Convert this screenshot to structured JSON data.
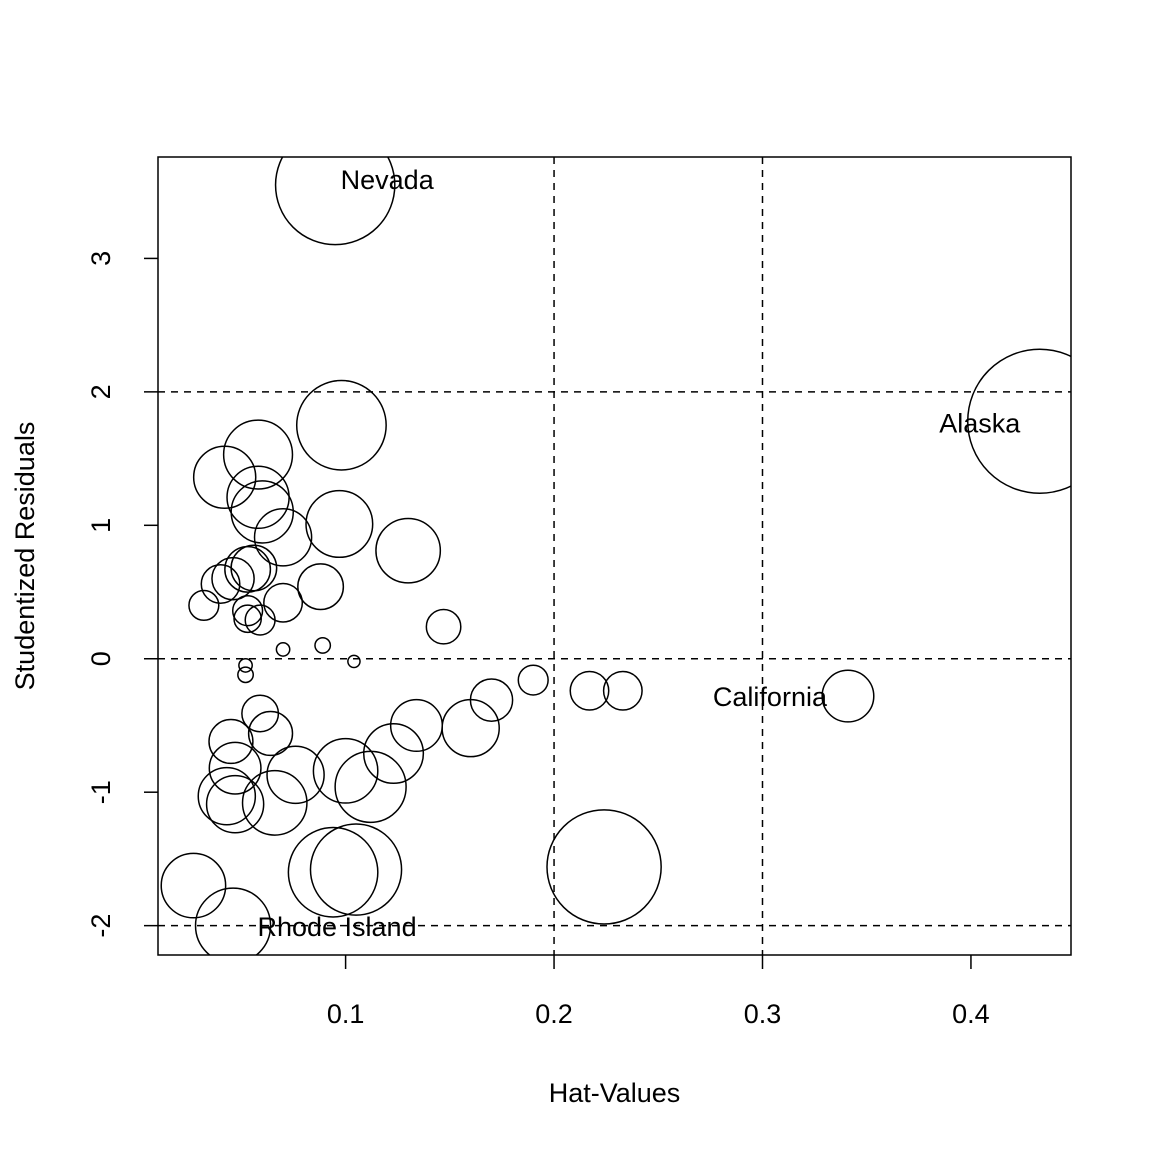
{
  "chart_data": {
    "type": "scatter",
    "xlabel": "Hat-Values",
    "ylabel": "Studentized Residuals",
    "xlim": [
      0.01,
      0.448
    ],
    "ylim": [
      -2.22,
      3.76
    ],
    "x_ticks": [
      "0.1",
      "0.2",
      "0.3",
      "0.4"
    ],
    "x_tick_values": [
      0.1,
      0.2,
      0.3,
      0.4
    ],
    "y_ticks": [
      "-2",
      "-1",
      "0",
      "1",
      "2",
      "3"
    ],
    "y_tick_values": [
      -2,
      -1,
      0,
      1,
      2,
      3
    ],
    "reference_lines": {
      "h": [
        -2,
        0,
        2
      ],
      "v": [
        0.2,
        0.3
      ]
    },
    "grid": false,
    "points": [
      {
        "x": 0.095,
        "y": 3.55,
        "size": 0.48,
        "label": "Nevada"
      },
      {
        "x": 0.433,
        "y": 1.78,
        "size": 0.7,
        "label": "Alaska"
      },
      {
        "x": 0.341,
        "y": -0.28,
        "size": 0.09,
        "label": "California"
      },
      {
        "x": 0.046,
        "y": -2.0,
        "size": 0.19,
        "label": "Rhode Island"
      },
      {
        "x": 0.098,
        "y": 1.75,
        "size": 0.27
      },
      {
        "x": 0.058,
        "y": 1.53,
        "size": 0.16
      },
      {
        "x": 0.042,
        "y": 1.36,
        "size": 0.13
      },
      {
        "x": 0.058,
        "y": 1.21,
        "size": 0.13
      },
      {
        "x": 0.06,
        "y": 1.1,
        "size": 0.13
      },
      {
        "x": 0.097,
        "y": 1.01,
        "size": 0.15
      },
      {
        "x": 0.07,
        "y": 0.91,
        "size": 0.11
      },
      {
        "x": 0.13,
        "y": 0.81,
        "size": 0.14
      },
      {
        "x": 0.053,
        "y": 0.67,
        "size": 0.07
      },
      {
        "x": 0.056,
        "y": 0.68,
        "size": 0.07
      },
      {
        "x": 0.046,
        "y": 0.6,
        "size": 0.06
      },
      {
        "x": 0.04,
        "y": 0.56,
        "size": 0.05
      },
      {
        "x": 0.088,
        "y": 0.54,
        "size": 0.07
      },
      {
        "x": 0.07,
        "y": 0.42,
        "size": 0.05
      },
      {
        "x": 0.032,
        "y": 0.4,
        "size": 0.03
      },
      {
        "x": 0.053,
        "y": 0.36,
        "size": 0.03
      },
      {
        "x": 0.053,
        "y": 0.3,
        "size": 0.025
      },
      {
        "x": 0.059,
        "y": 0.29,
        "size": 0.03
      },
      {
        "x": 0.147,
        "y": 0.24,
        "size": 0.04
      },
      {
        "x": 0.089,
        "y": 0.1,
        "size": 0.008
      },
      {
        "x": 0.07,
        "y": 0.07,
        "size": 0.006
      },
      {
        "x": 0.052,
        "y": -0.05,
        "size": 0.006
      },
      {
        "x": 0.052,
        "y": -0.12,
        "size": 0.008
      },
      {
        "x": 0.104,
        "y": -0.02,
        "size": 0.005
      },
      {
        "x": 0.19,
        "y": -0.16,
        "size": 0.03
      },
      {
        "x": 0.217,
        "y": -0.24,
        "size": 0.05
      },
      {
        "x": 0.233,
        "y": -0.24,
        "size": 0.05
      },
      {
        "x": 0.17,
        "y": -0.31,
        "size": 0.06
      },
      {
        "x": 0.059,
        "y": -0.41,
        "size": 0.045
      },
      {
        "x": 0.134,
        "y": -0.5,
        "size": 0.09
      },
      {
        "x": 0.16,
        "y": -0.52,
        "size": 0.11
      },
      {
        "x": 0.064,
        "y": -0.56,
        "size": 0.065
      },
      {
        "x": 0.045,
        "y": -0.62,
        "size": 0.065
      },
      {
        "x": 0.123,
        "y": -0.71,
        "size": 0.12
      },
      {
        "x": 0.047,
        "y": -0.82,
        "size": 0.09
      },
      {
        "x": 0.1,
        "y": -0.84,
        "size": 0.14
      },
      {
        "x": 0.076,
        "y": -0.87,
        "size": 0.11
      },
      {
        "x": 0.112,
        "y": -0.96,
        "size": 0.17
      },
      {
        "x": 0.043,
        "y": -1.03,
        "size": 0.11
      },
      {
        "x": 0.047,
        "y": -1.09,
        "size": 0.11
      },
      {
        "x": 0.066,
        "y": -1.08,
        "size": 0.14
      },
      {
        "x": 0.027,
        "y": -1.7,
        "size": 0.14
      },
      {
        "x": 0.094,
        "y": -1.6,
        "size": 0.27
      },
      {
        "x": 0.105,
        "y": -1.58,
        "size": 0.28
      },
      {
        "x": 0.224,
        "y": -1.56,
        "size": 0.44
      }
    ]
  }
}
